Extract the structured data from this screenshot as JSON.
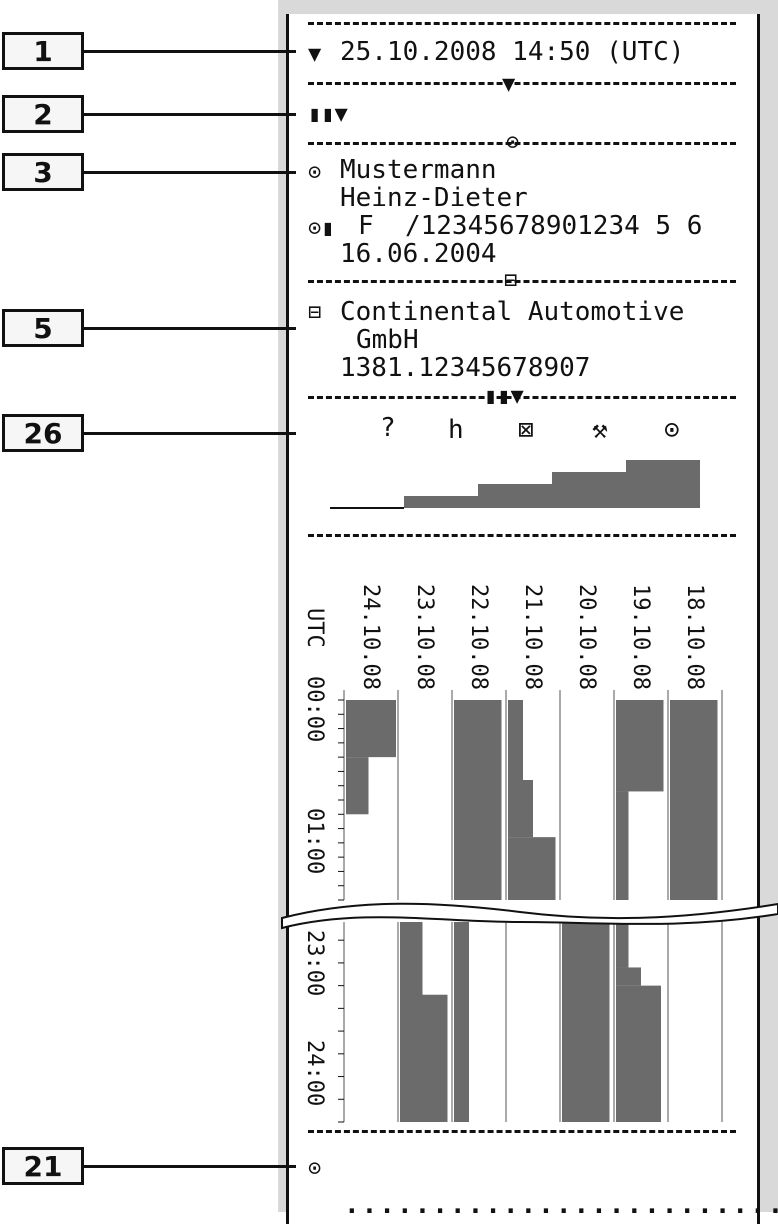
{
  "callouts": [
    "1",
    "2",
    "3",
    "5",
    "26",
    "21"
  ],
  "header": {
    "datetime": "25.10.2008 14:50 (UTC)"
  },
  "driver": {
    "last_name": "Mustermann",
    "first_name": "Heinz-Dieter",
    "card_line": "F  /12345678901234 5 6",
    "card_date": "16.06.2004"
  },
  "manufacturer": {
    "name_line1": "Continental Automotive",
    "name_line2": "GmbH",
    "part_number": "1381.12345678907"
  },
  "activity_symbols": [
    "?",
    "h",
    "⊠",
    "⚒",
    "⊙"
  ],
  "step_values": [
    0,
    1,
    2,
    3,
    4
  ],
  "timeline": {
    "utc_label": "UTC",
    "dates": [
      "24.10.08",
      "23.10.08",
      "22.10.08",
      "21.10.08",
      "20.10.08",
      "19.10.08",
      "18.10.08"
    ],
    "time_labels_upper": [
      "00:00",
      "01:00"
    ],
    "time_labels_lower": [
      "23:00",
      "24:00"
    ]
  },
  "footer": {
    "symbol": "⊙"
  },
  "colors": {
    "bar": "#6b6b6b",
    "ink": "#111111",
    "margin": "#d9d9d9"
  }
}
